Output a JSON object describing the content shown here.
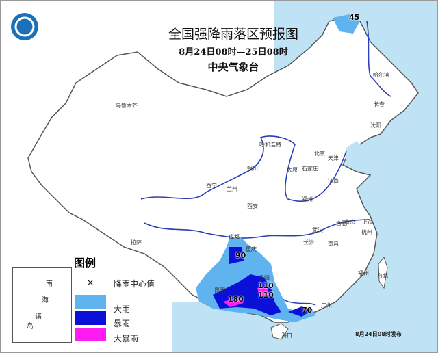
{
  "header": {
    "title": "全国强降雨落区预报图",
    "period": "8月24日08时—25日08时",
    "issuer": "中央气象台"
  },
  "logo": {
    "icon": "cma-logo"
  },
  "map": {
    "sea_color": "#bfe3f5",
    "land_color": "#ffffff",
    "river_color": "#2b3fb8",
    "cities": [
      "乌鲁木齐",
      "拉萨",
      "西宁",
      "兰州",
      "银川",
      "呼和浩特",
      "北京",
      "天津",
      "石家庄",
      "太原",
      "济南",
      "郑州",
      "西安",
      "成都",
      "重庆",
      "贵阳",
      "昆明",
      "长沙",
      "南昌",
      "武汉",
      "合肥",
      "南京",
      "上海",
      "杭州",
      "福州",
      "台北",
      "广州",
      "海口",
      "沈阳",
      "长春",
      "哈尔滨"
    ],
    "rain_center_values": [
      "45",
      "90",
      "110",
      "110",
      "180",
      "70"
    ]
  },
  "legend": {
    "title": "图例",
    "items": [
      {
        "label": "降雨中心值",
        "symbol": "×"
      },
      {
        "label": "大雨",
        "color": "#5fb4f0"
      },
      {
        "label": "暴雨",
        "color": "#0a10d8"
      },
      {
        "label": "大暴雨",
        "color": "#ff1cf0"
      }
    ],
    "inset_labels": [
      "南",
      "海",
      "诸",
      "岛"
    ]
  },
  "footer": {
    "release": "8月24日08时发布"
  }
}
